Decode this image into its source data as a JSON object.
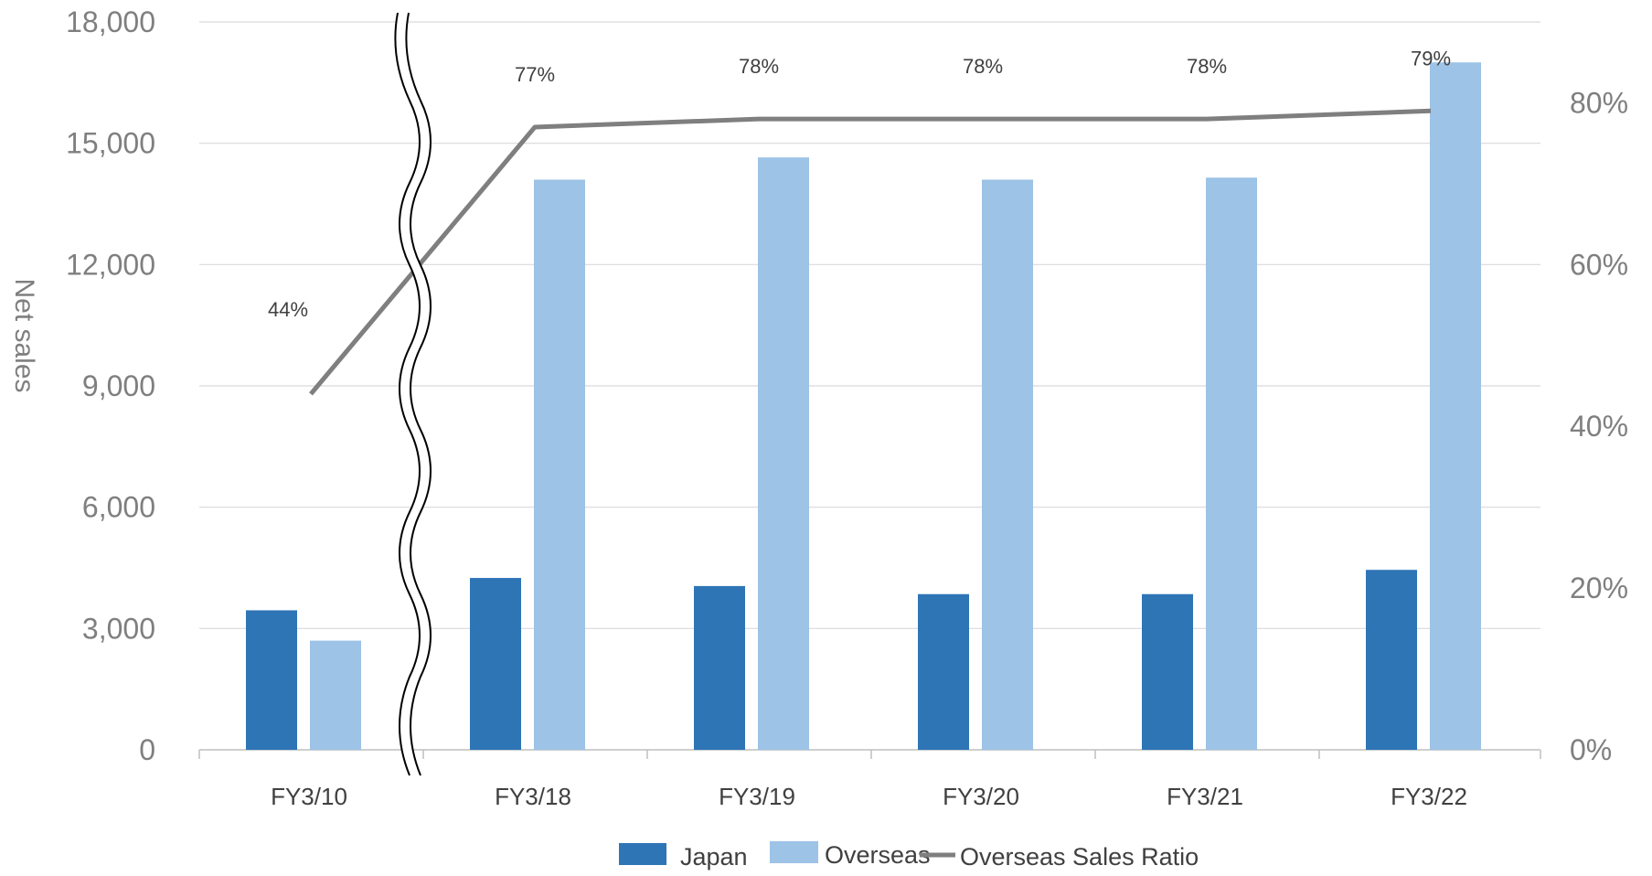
{
  "chart_data": {
    "type": "bar",
    "categories": [
      "FY3/10",
      "FY3/18",
      "FY3/19",
      "FY3/20",
      "FY3/21",
      "FY3/22"
    ],
    "series": [
      {
        "name": "Japan",
        "type": "bar",
        "axis": "left",
        "color": "#2e75b6",
        "values": [
          3450,
          4250,
          4050,
          3850,
          3850,
          4450
        ]
      },
      {
        "name": "Overseas",
        "type": "bar",
        "axis": "left",
        "color": "#9dc3e6",
        "values": [
          2700,
          14100,
          14650,
          14100,
          14150,
          17000
        ]
      },
      {
        "name": "Overseas Sales Ratio",
        "type": "line",
        "axis": "right",
        "color": "#7f7f7f",
        "values": [
          44,
          77,
          78,
          78,
          78,
          79
        ],
        "labels": [
          "44%",
          "77%",
          "78%",
          "78%",
          "78%",
          "79%"
        ]
      }
    ],
    "ylabel": "Net sales",
    "ylim": [
      0,
      18000
    ],
    "yticks": [
      "0",
      "3,000",
      "6,000",
      "9,000",
      "12,000",
      "15,000",
      "18,000"
    ],
    "ylim_right": [
      0,
      90
    ],
    "yticks_right": [
      "0%",
      "20%",
      "40%",
      "60%",
      "80%"
    ],
    "axis_break": "between FY3/10 and FY3/18",
    "grid": true,
    "legend_position": "bottom"
  }
}
